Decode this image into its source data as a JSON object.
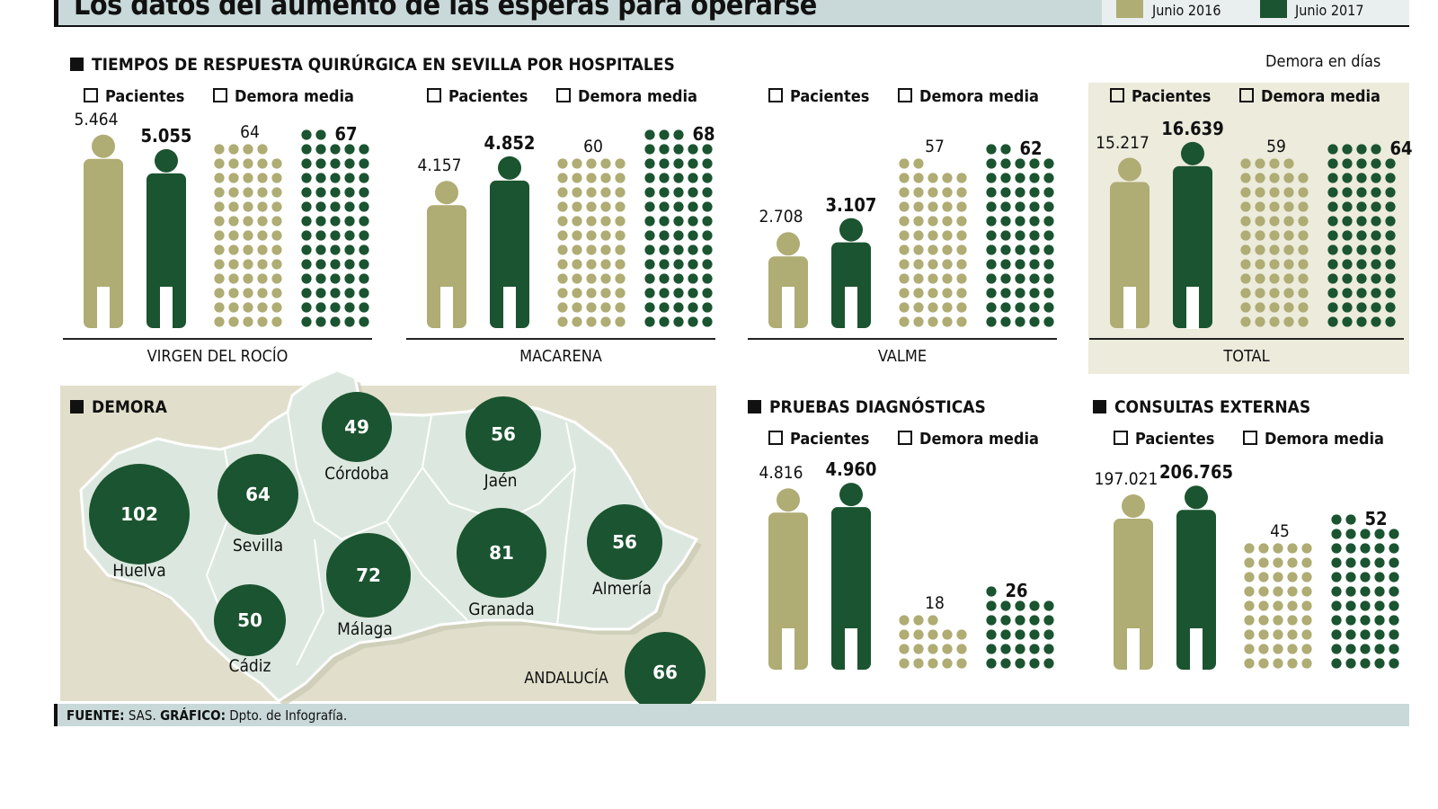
{
  "header": {
    "title": "Los datos del aumento de las esperas para operarse",
    "legend": [
      {
        "label": "Junio 2016",
        "color": "#afac74"
      },
      {
        "label": "Junio 2017",
        "color": "#1b5430"
      }
    ]
  },
  "section_quirurgica": {
    "title": "TIEMPOS DE RESPUESTA QUIRÚRGICA EN SEVILLA POR HOSPITALES",
    "unit_note": "Demora en días"
  },
  "legend_labels": {
    "patients": "Pacientes",
    "delay": "Demora media"
  },
  "section_map": {
    "title": "DEMORA"
  },
  "section_pruebas": {
    "title": "PRUEBAS DIAGNÓSTICAS"
  },
  "section_consultas": {
    "title": "CONSULTAS EXTERNAS"
  },
  "footer": {
    "source_label": "FUENTE:",
    "source": "SAS.",
    "graphic_label": "GRÁFICO:",
    "graphic": "Dpto. de Infografía."
  },
  "chart_data": [
    {
      "type": "pictogram",
      "name": "VIRGEN DEL ROCÍO",
      "patients": {
        "2016": "5.464",
        "2017": "5.055"
      },
      "patients_values": [
        5464,
        5055
      ],
      "delay_days": [
        64,
        67
      ]
    },
    {
      "type": "pictogram",
      "name": "MACARENA",
      "patients": {
        "2016": "4.157",
        "2017": "4.852"
      },
      "patients_values": [
        4157,
        4852
      ],
      "delay_days": [
        60,
        68
      ]
    },
    {
      "type": "pictogram",
      "name": "VALME",
      "patients": {
        "2016": "2.708",
        "2017": "3.107"
      },
      "patients_values": [
        2708,
        3107
      ],
      "delay_days": [
        57,
        62
      ]
    },
    {
      "type": "pictogram",
      "name": "TOTAL",
      "patients": {
        "2016": "15.217",
        "2017": "16.639"
      },
      "patients_values": [
        15217,
        16639
      ],
      "delay_days": [
        59,
        64
      ]
    },
    {
      "type": "pictogram",
      "name": "",
      "patients": {
        "2016": "4.816",
        "2017": "4.960"
      },
      "patients_values": [
        4816,
        4960
      ],
      "delay_days": [
        18,
        26
      ]
    },
    {
      "type": "pictogram",
      "name": "",
      "patients": {
        "2016": "197.021",
        "2017": "206.765"
      },
      "patients_values": [
        197021,
        206765
      ],
      "delay_days": [
        45,
        52
      ]
    },
    {
      "type": "bubble-map",
      "title": "DEMORA",
      "regions": [
        {
          "name": "Huelva",
          "value": 102
        },
        {
          "name": "Sevilla",
          "value": 64
        },
        {
          "name": "Córdoba",
          "value": 49
        },
        {
          "name": "Jaén",
          "value": 56
        },
        {
          "name": "Granada",
          "value": 81
        },
        {
          "name": "Málaga",
          "value": 72
        },
        {
          "name": "Almería",
          "value": 56
        },
        {
          "name": "Cádiz",
          "value": 50
        },
        {
          "name": "ANDALUCÍA",
          "value": 66
        }
      ]
    }
  ]
}
